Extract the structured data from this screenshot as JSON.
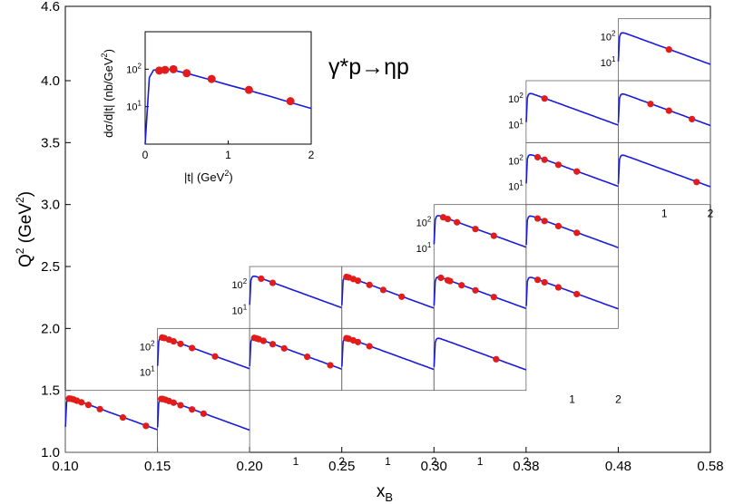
{
  "chart_data": {
    "type": "line",
    "title": "γ*p→ηp",
    "xlabel": "x",
    "xlabel_sub": "B",
    "ylabel": "Q",
    "ylabel_sup": "2",
    "ylabel_unit_open": " (GeV",
    "ylabel_unit_close": ")",
    "x_ticks": [
      "0.10",
      "0.15",
      "0.20",
      "0.25",
      "0.30",
      "0.38",
      "0.48",
      "0.58"
    ],
    "y_ticks": [
      "1.0",
      "1.5",
      "2.0",
      "2.5",
      "3.0",
      "3.5",
      "4.0",
      "4.6"
    ],
    "y_values": [
      1.0,
      1.5,
      2.0,
      2.5,
      3.0,
      3.5,
      4.0,
      4.6
    ],
    "inset": {
      "ylabel": "dσ/d|t| (nb/GeV",
      "ylabel_sup": "2",
      "ylabel_close": ")",
      "xlabel": "|t| (GeV",
      "xlabel_sup": "2",
      "xlabel_close": ")",
      "x_ticks": [
        "0",
        "1",
        "2"
      ],
      "y_ticks": [
        "10",
        "10"
      ],
      "y_tick_exps": [
        "1",
        "2"
      ],
      "t_range": [
        0,
        2
      ],
      "sigma_range": [
        1,
        1000
      ],
      "curve": [
        [
          0.02,
          5
        ],
        [
          0.05,
          60
        ],
        [
          0.1,
          95
        ],
        [
          0.2,
          102
        ],
        [
          0.3,
          98
        ],
        [
          0.5,
          78
        ],
        [
          0.75,
          55
        ],
        [
          1.0,
          38
        ],
        [
          1.25,
          27
        ],
        [
          1.5,
          19
        ],
        [
          1.75,
          13
        ],
        [
          2.0,
          9
        ]
      ],
      "points": [
        [
          0.17,
          92
        ],
        [
          0.24,
          96
        ],
        [
          0.34,
          100
        ],
        [
          0.5,
          78
        ],
        [
          0.8,
          55
        ],
        [
          1.25,
          28
        ],
        [
          1.75,
          14
        ]
      ]
    },
    "panels": [
      {
        "xbin": 0,
        "qbin": 0,
        "points": [
          0.08,
          0.12,
          0.18,
          0.25,
          0.35,
          0.5,
          0.75,
          1.25,
          1.75
        ]
      },
      {
        "xbin": 1,
        "qbin": 0,
        "points": [
          0.08,
          0.12,
          0.18,
          0.25,
          0.35,
          0.5,
          0.75,
          1.0
        ]
      },
      {
        "xbin": 1,
        "qbin": 1,
        "points": [
          0.1,
          0.15,
          0.25,
          0.35,
          0.5,
          0.75,
          1.25
        ]
      },
      {
        "xbin": 2,
        "qbin": 1,
        "points": [
          0.1,
          0.15,
          0.2,
          0.3,
          0.5,
          0.75,
          1.25,
          1.75
        ]
      },
      {
        "xbin": 2,
        "qbin": 2,
        "points": [
          0.25,
          0.5
        ]
      },
      {
        "xbin": 3,
        "qbin": 1,
        "points": [
          0.1,
          0.15,
          0.25,
          0.35,
          0.6
        ]
      },
      {
        "xbin": 3,
        "qbin": 2,
        "points": [
          0.1,
          0.15,
          0.25,
          0.35,
          0.6,
          0.9,
          1.3
        ]
      },
      {
        "xbin": 4,
        "qbin": 2,
        "points": [
          0.15,
          0.3,
          0.35,
          0.6,
          0.9,
          1.3
        ]
      },
      {
        "xbin": 4,
        "qbin": 3,
        "points": [
          0.2,
          0.3,
          0.5,
          0.9,
          1.3
        ]
      },
      {
        "xbin": 4,
        "qbin": 1,
        "points": [
          1.35
        ]
      },
      {
        "xbin": 5,
        "qbin": 2,
        "points": [
          0.25,
          0.4,
          0.7,
          1.1
        ]
      },
      {
        "xbin": 5,
        "qbin": 3,
        "points": [
          0.25,
          0.4,
          0.7,
          1.1
        ]
      },
      {
        "xbin": 5,
        "qbin": 4,
        "points": [
          0.25,
          0.4,
          0.7,
          1.1
        ]
      },
      {
        "xbin": 5,
        "qbin": 5,
        "points": [
          0.4
        ]
      },
      {
        "xbin": 6,
        "qbin": 4,
        "points": [
          1.7
        ]
      },
      {
        "xbin": 6,
        "qbin": 5,
        "points": [
          0.7,
          1.1,
          1.6
        ]
      },
      {
        "xbin": 6,
        "qbin": 6,
        "points": [
          1.1
        ]
      }
    ],
    "panel_ytick_exps": [
      "1",
      "2"
    ],
    "panel_ytick_base": "10",
    "panel_xtick_labels": [
      "1",
      "2"
    ]
  }
}
